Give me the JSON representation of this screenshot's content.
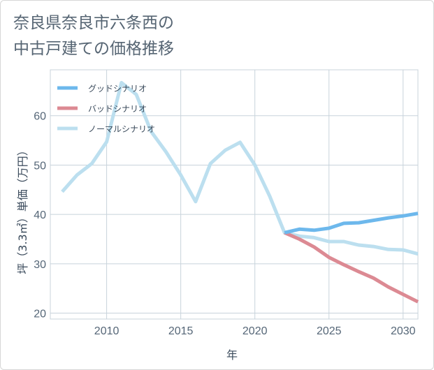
{
  "title": {
    "line1": "奈良県奈良市六条西の",
    "line2": "中古戸建ての価格推移"
  },
  "chart_data": {
    "type": "line",
    "xlabel": "年",
    "ylabel": "坪（3.3㎡）単価（万円）",
    "xlim": [
      2006.2,
      2031
    ],
    "ylim": [
      18.8,
      69.3
    ],
    "xticks": [
      2010,
      2015,
      2020,
      2025,
      2030
    ],
    "yticks": [
      20,
      30,
      40,
      50,
      60
    ],
    "grid": true,
    "legend_position": "top-left",
    "series": [
      {
        "name": "グッドシナリオ",
        "color": "#6db8ec",
        "x": [
          2022,
          2023,
          2024,
          2025,
          2026,
          2027,
          2028,
          2029,
          2030,
          2031
        ],
        "y": [
          36.3,
          37.0,
          36.8,
          37.2,
          38.2,
          38.3,
          38.8,
          39.3,
          39.7,
          40.2
        ]
      },
      {
        "name": "バッドシナリオ",
        "color": "#dc8a93",
        "x": [
          2022,
          2023,
          2024,
          2025,
          2026,
          2027,
          2028,
          2029,
          2030,
          2031
        ],
        "y": [
          36.3,
          35.0,
          33.4,
          31.3,
          29.8,
          28.4,
          27.1,
          25.3,
          23.8,
          22.3
        ]
      },
      {
        "name": "ノーマルシナリオ",
        "color": "#bcdfef",
        "x": [
          2007,
          2008,
          2009,
          2010,
          2011,
          2012,
          2013,
          2014,
          2015,
          2016,
          2017,
          2018,
          2019,
          2020,
          2021,
          2022,
          2023,
          2024,
          2025,
          2026,
          2027,
          2028,
          2029,
          2030,
          2031
        ],
        "y": [
          44.6,
          48.0,
          50.3,
          54.7,
          66.7,
          64.3,
          56.8,
          52.7,
          48.0,
          42.6,
          50.3,
          53.0,
          54.6,
          50.0,
          43.7,
          36.3,
          35.6,
          35.3,
          34.5,
          34.5,
          33.8,
          33.5,
          32.9,
          32.8,
          32.0
        ]
      }
    ]
  }
}
